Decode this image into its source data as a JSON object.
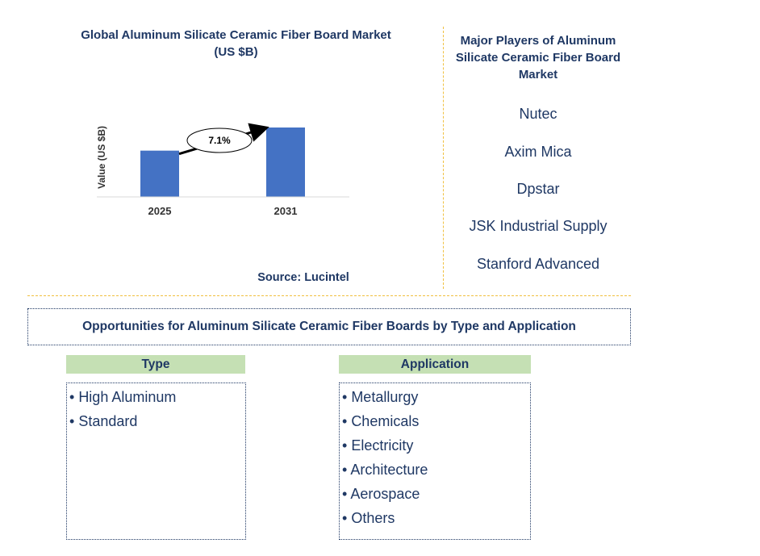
{
  "chart_data": {
    "type": "bar",
    "title": "Global Aluminum Silicate Ceramic Fiber Board Market (US $B)",
    "title_lines": [
      "Global Aluminum Silicate Ceramic Fiber Board Market",
      "(US $B)"
    ],
    "ylabel": "Value (US $B)",
    "categories": [
      "2025",
      "2031"
    ],
    "values": [
      1.0,
      1.5
    ],
    "cagr_label": "7.1%",
    "bar_color": "#4472c4",
    "grid": false
  },
  "source": "Source: Lucintel",
  "players": {
    "title_lines": [
      "Major Players of Aluminum",
      "Silicate Ceramic Fiber Board",
      "Market"
    ],
    "items": [
      "Nutec",
      "Axim Mica",
      "Dpstar",
      "JSK Industrial Supply",
      "Stanford Advanced"
    ]
  },
  "opportunities_title": "Opportunities for Aluminum Silicate Ceramic Fiber Boards by Type and Application",
  "type_segment": {
    "header": "Type",
    "items": [
      "High Aluminum",
      "Standard"
    ]
  },
  "application_segment": {
    "header": "Application",
    "items": [
      "Metallurgy",
      "Chemicals",
      "Electricity",
      "Architecture",
      "Aerospace",
      "Others"
    ]
  },
  "colors": {
    "text": "#1f3864",
    "bar": "#4472c4",
    "segment_header": "#c5e0b4",
    "divider": "#f0c040"
  }
}
